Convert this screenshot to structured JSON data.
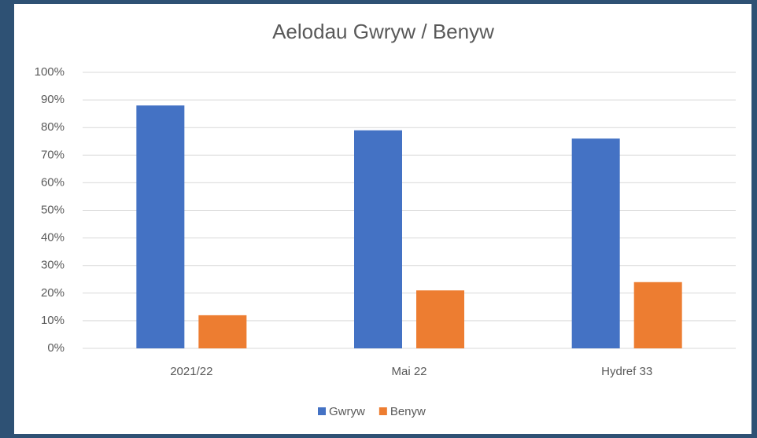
{
  "chart_data": {
    "type": "bar",
    "title": "Aelodau Gwryw / Benyw",
    "categories": [
      "2021/22",
      "Mai 22",
      "Hydref 33"
    ],
    "series": [
      {
        "name": "Gwryw",
        "color": "#4472c4",
        "values": [
          88,
          79,
          76
        ]
      },
      {
        "name": "Benyw",
        "color": "#ed7d31",
        "values": [
          12,
          21,
          24
        ]
      }
    ],
    "ylim": [
      0,
      100
    ],
    "yticks": [
      {
        "value": 0,
        "label": "0%"
      },
      {
        "value": 10,
        "label": "10%"
      },
      {
        "value": 20,
        "label": "20%"
      },
      {
        "value": 30,
        "label": "30%"
      },
      {
        "value": 40,
        "label": "40%"
      },
      {
        "value": 50,
        "label": "50%"
      },
      {
        "value": 60,
        "label": "60%"
      },
      {
        "value": 70,
        "label": "70%"
      },
      {
        "value": 80,
        "label": "80%"
      },
      {
        "value": 90,
        "label": "90%"
      },
      {
        "value": 100,
        "label": "100%"
      }
    ],
    "grid": true,
    "legend": "bottom"
  }
}
